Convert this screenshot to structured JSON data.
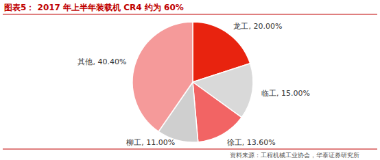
{
  "chart_data": {
    "type": "pie",
    "title": "图表5： 2017 年上半年装载机 CR4 约为 60%",
    "source": "资料来源：工程机械工业协会，华泰证券研究所",
    "categories": [
      "龙工",
      "临工",
      "徐工",
      "柳工",
      "其他"
    ],
    "values": [
      20.0,
      15.0,
      13.6,
      11.0,
      40.4
    ],
    "value_labels": [
      "20.00%",
      "15.00%",
      "13.60%",
      "11.00%",
      "40.40%"
    ],
    "colors": [
      "#e8230f",
      "#d9d9d9",
      "#f26464",
      "#cfcfcf",
      "#f59a9a"
    ],
    "data_labels": true
  }
}
